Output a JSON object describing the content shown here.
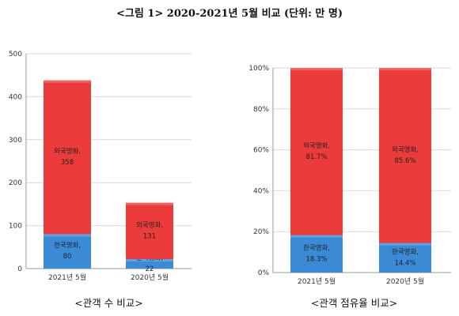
{
  "page": {
    "title": "<그림 1> 2020-2021년 5월 비교 (단위: 만 명)"
  },
  "colors": {
    "domestic": "#3b8ad6",
    "domestic_top": "#5aa6ea",
    "foreign": "#ec3b3b",
    "foreign_top": "#f46161",
    "grid": "#d9d9d9",
    "axis": "#999999"
  },
  "chart_data": [
    {
      "type": "bar",
      "stacked": true,
      "caption": "<관객 수 비교>",
      "categories": [
        "2021년 5월",
        "2020년 5월"
      ],
      "ylim": [
        0,
        500
      ],
      "yticks": [
        0,
        100,
        200,
        300,
        400,
        500
      ],
      "ytick_labels": [
        "0",
        "100",
        "200",
        "300",
        "400",
        "500"
      ],
      "grid": true,
      "series": [
        {
          "name": "한국영화",
          "values": [
            80,
            22
          ],
          "labels": [
            "한국영화,\n80",
            "한국영화,\n22"
          ],
          "color": "#3b8ad6"
        },
        {
          "name": "외국영화",
          "values": [
            358,
            131
          ],
          "labels": [
            "외국영화,\n358",
            "외국영화,\n131"
          ],
          "color": "#ec3b3b"
        }
      ]
    },
    {
      "type": "bar",
      "stacked": true,
      "caption": "<관객 점유율 비교>",
      "categories": [
        "2021년 5월",
        "2020년 5월"
      ],
      "ylim": [
        0,
        100
      ],
      "yticks": [
        0,
        20,
        40,
        60,
        80,
        100
      ],
      "ytick_labels": [
        "0%",
        "20%",
        "40%",
        "60%",
        "80%",
        "100%"
      ],
      "grid": true,
      "series": [
        {
          "name": "한국영화",
          "values": [
            18.3,
            14.4
          ],
          "labels": [
            "한국영화,\n18.3%",
            "한국영화,\n14.4%"
          ],
          "color": "#3b8ad6"
        },
        {
          "name": "외국영화",
          "values": [
            81.7,
            85.6
          ],
          "labels": [
            "외국영화,\n81.7%",
            "외국영화,\n85.6%"
          ],
          "color": "#ec3b3b"
        }
      ]
    }
  ]
}
